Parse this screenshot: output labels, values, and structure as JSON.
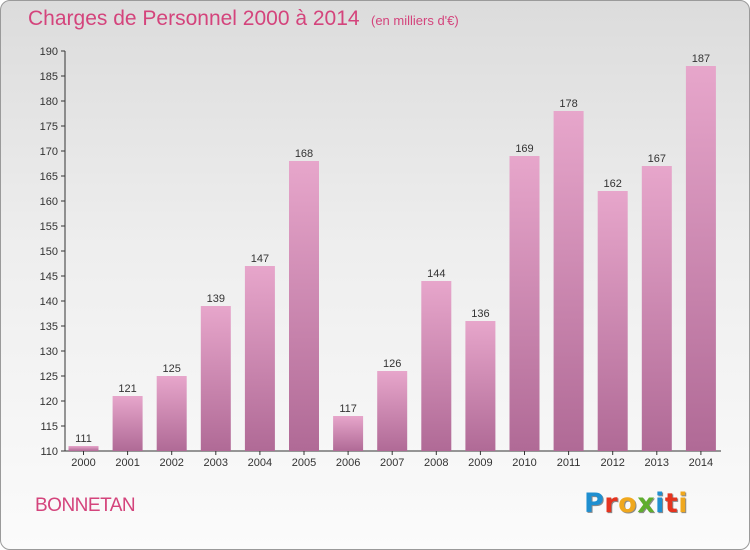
{
  "header": {
    "title": "Charges de Personnel 2000 à 2014",
    "subtitle": "(en milliers d'€)"
  },
  "footer": {
    "commune": "BONNETAN",
    "logo_letters": [
      {
        "ch": "P",
        "color": "#1f8fd0"
      },
      {
        "ch": "r",
        "color": "#e5341f"
      },
      {
        "ch": "o",
        "color": "#f0a81e"
      },
      {
        "ch": "x",
        "color": "#5fae2e"
      },
      {
        "ch": "i",
        "color": "#1f8fd0"
      },
      {
        "ch": "t",
        "color": "#e5341f"
      },
      {
        "ch": "i",
        "color": "#f0a81e"
      }
    ]
  },
  "colors": {
    "accent": "#d4447c",
    "bar_top": "#e7a6cb",
    "bar_bottom": "#b06a96"
  },
  "chart_data": {
    "type": "bar",
    "title": "Charges de Personnel 2000 à 2014",
    "subtitle": "(en milliers d'€)",
    "categories": [
      "2000",
      "2001",
      "2002",
      "2003",
      "2004",
      "2005",
      "2006",
      "2007",
      "2008",
      "2009",
      "2010",
      "2011",
      "2012",
      "2013",
      "2014"
    ],
    "values": [
      111,
      121,
      125,
      139,
      147,
      168,
      117,
      126,
      144,
      136,
      169,
      178,
      162,
      167,
      187
    ],
    "ylim": [
      110,
      190
    ],
    "yticks": [
      110,
      115,
      120,
      125,
      130,
      135,
      140,
      145,
      150,
      155,
      160,
      165,
      170,
      175,
      180,
      185,
      190
    ],
    "grid": false,
    "data_labels": true
  }
}
